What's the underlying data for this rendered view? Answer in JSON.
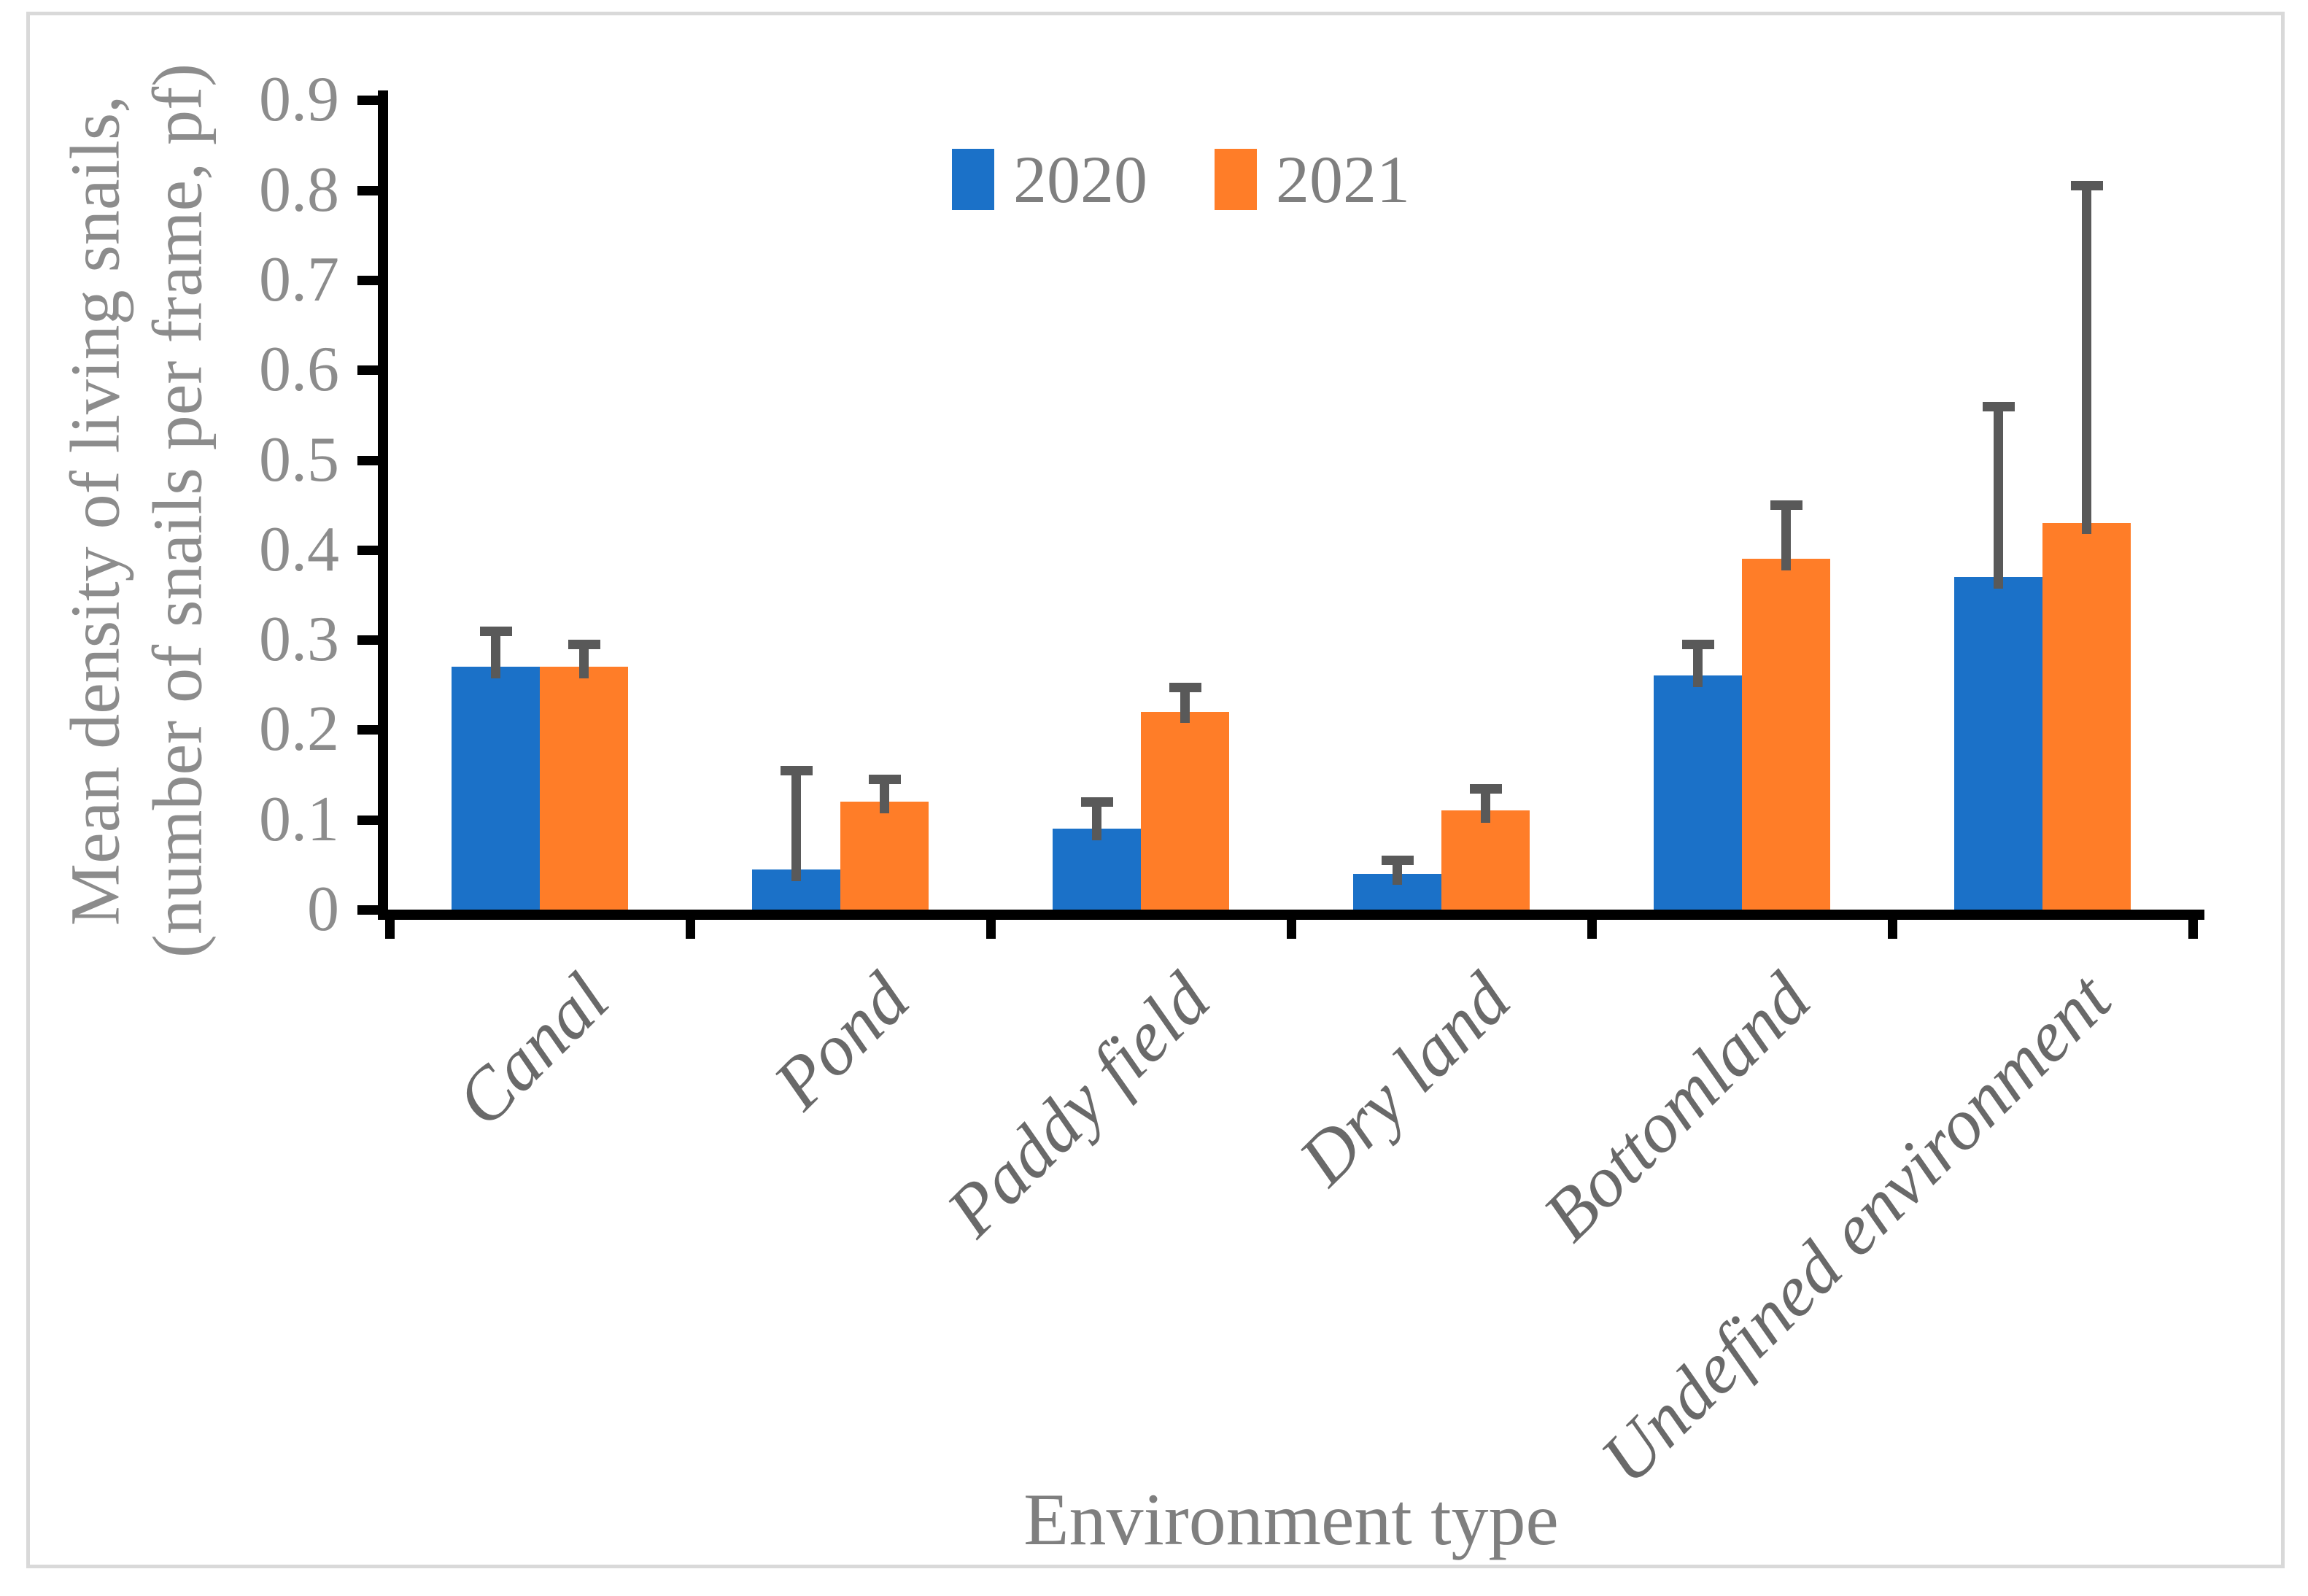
{
  "figure": {
    "background": "#FFFFFF",
    "border_color": "#D9D9D9"
  },
  "axes": {
    "y_title_line1": "Mean density of living snails,",
    "y_title_line2": "(number of snails per frame, pf)",
    "x_title": "Environment type",
    "y_ticks": [
      {
        "label": "0.9",
        "value": 0.9
      },
      {
        "label": "0.8",
        "value": 0.8
      },
      {
        "label": "0.7",
        "value": 0.7
      },
      {
        "label": "0.6",
        "value": 0.6
      },
      {
        "label": "0.5",
        "value": 0.5
      },
      {
        "label": "0.4",
        "value": 0.4
      },
      {
        "label": "0.3",
        "value": 0.3
      },
      {
        "label": "0.2",
        "value": 0.2
      },
      {
        "label": "0.1",
        "value": 0.1
      },
      {
        "label": "0",
        "value": 0.0
      }
    ],
    "axis_color": "#000000",
    "tick_label_color": "#8C8C8C"
  },
  "legend": {
    "position": "top-center",
    "items": [
      {
        "label": "2020",
        "color": "#1B71C8"
      },
      {
        "label": "2021",
        "color": "#FF7D28"
      }
    ]
  },
  "chart_data": {
    "type": "bar",
    "title": "",
    "xlabel": "Environment type",
    "ylabel": "Mean density of living snails, (number of snails per frame, pf)",
    "ylim": [
      0,
      0.9
    ],
    "grid": false,
    "legend_position": "top-center",
    "error_bar_color": "#595959",
    "categories": [
      "Canal",
      "Pond",
      "Paddy field",
      "Dry land",
      "Bottomland",
      "Undefined environment"
    ],
    "series": [
      {
        "name": "2020",
        "color": "#1B71C8",
        "values": [
          0.27,
          0.045,
          0.09,
          0.04,
          0.26,
          0.37
        ],
        "error_up": [
          0.04,
          0.11,
          0.03,
          0.015,
          0.035,
          0.19
        ]
      },
      {
        "name": "2021",
        "color": "#FF7D28",
        "values": [
          0.27,
          0.12,
          0.22,
          0.11,
          0.39,
          0.43
        ],
        "error_up": [
          0.025,
          0.025,
          0.027,
          0.025,
          0.06,
          0.375
        ]
      }
    ]
  }
}
